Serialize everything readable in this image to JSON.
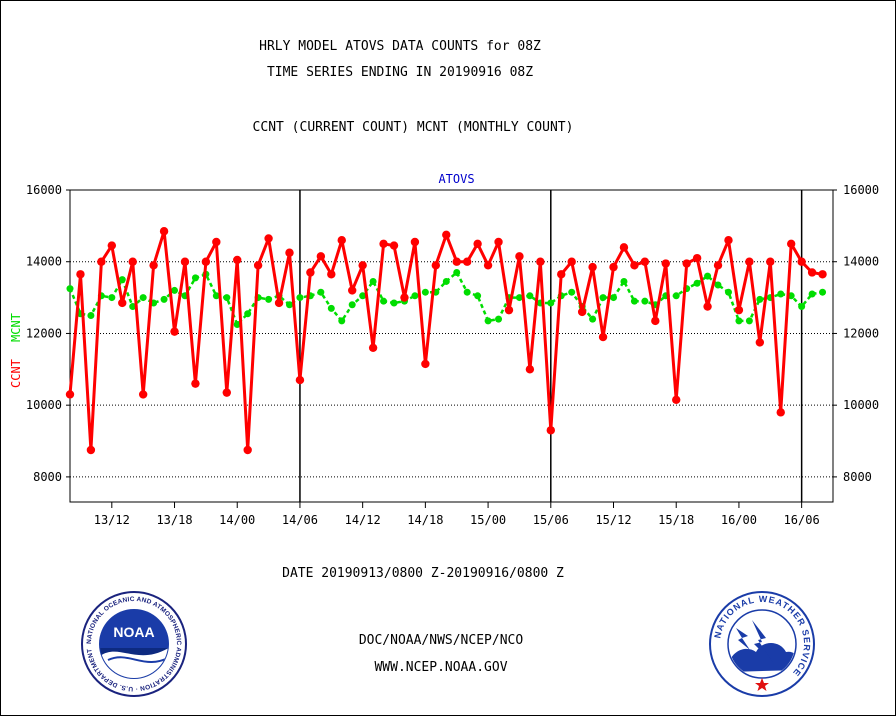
{
  "header": {
    "title_line1": "HRLY MODEL ATOVS DATA COUNTS for 08Z",
    "title_line2": "TIME SERIES ENDING IN 20190916 08Z",
    "subtitle": "CCNT (CURRENT COUNT) MCNT (MONTHLY COUNT)"
  },
  "footer": {
    "date_range": "DATE 20190913/0800 Z-20190916/0800 Z",
    "org_line": "DOC/NOAA/NWS/NCEP/NCO",
    "url_line": "WWW.NCEP.NOAA.GOV",
    "noaa_logo_text": "NOAA",
    "noaa_ring_text": "NATIONAL OCEANIC AND ATMOSPHERIC ADMINISTRATION · U.S. DEPARTMENT OF COMMERCE",
    "nws_ring_text": "NATIONAL WEATHER SERVICE"
  },
  "colors": {
    "ccnt": "#ff0000",
    "mcnt": "#00dd00",
    "title_blue": "#0000cc",
    "date_red": "#ff0000"
  },
  "chart_data": {
    "type": "line",
    "title": "ATOVS",
    "ylabel_left_ccnt": "CCNT",
    "ylabel_left_mcnt": "MCNT",
    "ylim": [
      7300,
      16000
    ],
    "yticks": [
      8000,
      10000,
      12000,
      14000,
      16000
    ],
    "ytick_labels": [
      "8000",
      "10000",
      "12000",
      "14000",
      "16000"
    ],
    "xlim": [
      0,
      73
    ],
    "xticks": [
      4,
      10,
      16,
      22,
      28,
      34,
      40,
      46,
      52,
      58,
      64,
      70
    ],
    "xtick_labels": [
      "13/12",
      "13/18",
      "14/00",
      "14/06",
      "14/12",
      "14/18",
      "15/00",
      "15/06",
      "15/12",
      "15/18",
      "16/00",
      "16/06"
    ],
    "day_dividers": [
      22,
      46,
      70
    ],
    "grid": true,
    "series": [
      {
        "name": "CCNT",
        "x": [
          0,
          1,
          2,
          3,
          4,
          5,
          6,
          7,
          8,
          9,
          10,
          11,
          12,
          13,
          14,
          15,
          16,
          17,
          18,
          19,
          20,
          21,
          22,
          23,
          24,
          25,
          26,
          27,
          28,
          29,
          30,
          31,
          32,
          33,
          34,
          35,
          36,
          37,
          38,
          39,
          40,
          41,
          42,
          43,
          44,
          45,
          46,
          47,
          48,
          49,
          50,
          51,
          52,
          53,
          54,
          55,
          56,
          57,
          58,
          59,
          60,
          61,
          62,
          63,
          64,
          65,
          66,
          67,
          68,
          69,
          70,
          71,
          72
        ],
        "values": [
          10300,
          13650,
          8750,
          14000,
          14450,
          12850,
          14000,
          10300,
          13900,
          14850,
          12050,
          14000,
          10600,
          14000,
          14550,
          10350,
          14050,
          8750,
          13900,
          14650,
          12850,
          14250,
          10700,
          13700,
          14150,
          13650,
          14600,
          13200,
          13900,
          11600,
          14500,
          14450,
          13000,
          14550,
          11150,
          13900,
          14750,
          14000,
          14000,
          14500,
          13900,
          14550,
          12650,
          14150,
          11000,
          14000,
          9300,
          13650,
          14000,
          12600,
          13850,
          11900,
          13850,
          14400,
          13900,
          14000,
          12350,
          13950,
          10150,
          13950,
          14100,
          12750,
          13900,
          14600,
          12650,
          14000,
          11750,
          14000,
          9800,
          14500,
          14000,
          13700,
          13650
        ]
      },
      {
        "name": "MCNT",
        "x": [
          0,
          1,
          2,
          3,
          4,
          5,
          6,
          7,
          8,
          9,
          10,
          11,
          12,
          13,
          14,
          15,
          16,
          17,
          18,
          19,
          20,
          21,
          22,
          23,
          24,
          25,
          26,
          27,
          28,
          29,
          30,
          31,
          32,
          33,
          34,
          35,
          36,
          37,
          38,
          39,
          40,
          41,
          42,
          43,
          44,
          45,
          46,
          47,
          48,
          49,
          50,
          51,
          52,
          53,
          54,
          55,
          56,
          57,
          58,
          59,
          60,
          61,
          62,
          63,
          64,
          65,
          66,
          67,
          68,
          69,
          70,
          71,
          72
        ],
        "values": [
          13250,
          12550,
          12500,
          13050,
          13000,
          13500,
          12750,
          13000,
          12850,
          12950,
          13200,
          13050,
          13550,
          13650,
          13050,
          13000,
          12250,
          12550,
          13000,
          12950,
          13050,
          12800,
          13000,
          13050,
          13150,
          12700,
          12350,
          12800,
          13050,
          13450,
          12900,
          12850,
          12900,
          13050,
          13150,
          13150,
          13450,
          13700,
          13150,
          13050,
          12350,
          12400,
          13000,
          13000,
          13050,
          12850,
          12850,
          13050,
          13150,
          12750,
          12400,
          13000,
          13000,
          13450,
          12900,
          12900,
          12800,
          13050,
          13050,
          13250,
          13400,
          13600,
          13350,
          13150,
          12350,
          12350,
          12950,
          13000,
          13100,
          13050,
          12750,
          13100,
          13150
        ]
      }
    ]
  }
}
